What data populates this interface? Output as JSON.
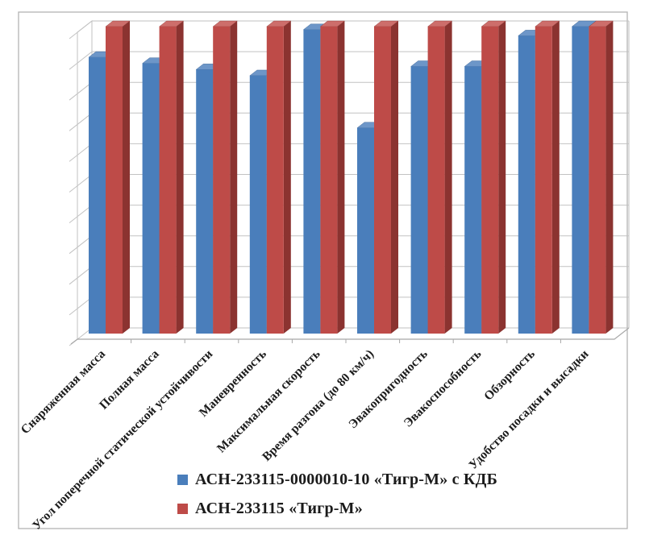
{
  "chart_data": {
    "type": "bar",
    "style": "3d-clustered-column",
    "title": "",
    "xlabel": "",
    "ylabel": "",
    "categories": [
      "Снаряженная масса",
      "Полная масса",
      "Угол поперечной статической устойчивости",
      "Маневренность",
      "Максимальная скорость",
      "Время разгона (до 80 км/ч)",
      "Эвакопригодность",
      "Эвакоспособность",
      "Обзорность",
      "Удобство посадки и высадки"
    ],
    "series": [
      {
        "name": "АСН-233115-0000010-10 «Тигр-М» с КДБ",
        "color": "#4A7EBB",
        "color_light": "#6D96C8",
        "color_dark": "#305A8E",
        "values": [
          90,
          88,
          86,
          84,
          99,
          67,
          87,
          87,
          97,
          100
        ]
      },
      {
        "name": "АСН-233115 «Тигр-М»",
        "color": "#BE4B48",
        "color_light": "#CD6E6B",
        "color_dark": "#8B3330",
        "values": [
          100,
          100,
          100,
          100,
          100,
          100,
          100,
          100,
          100,
          100
        ]
      }
    ],
    "value_axis": {
      "min": 0,
      "max": 100,
      "major_unit": 10,
      "labels_visible": false
    },
    "grid": true,
    "legend_position": "bottom-center"
  },
  "colors": {
    "frame": "#b3b3b3",
    "gridline": "#c2c2c2",
    "axis_line": "#a8a8a8",
    "label_text": "#1b1b1b",
    "background": "#ffffff"
  }
}
